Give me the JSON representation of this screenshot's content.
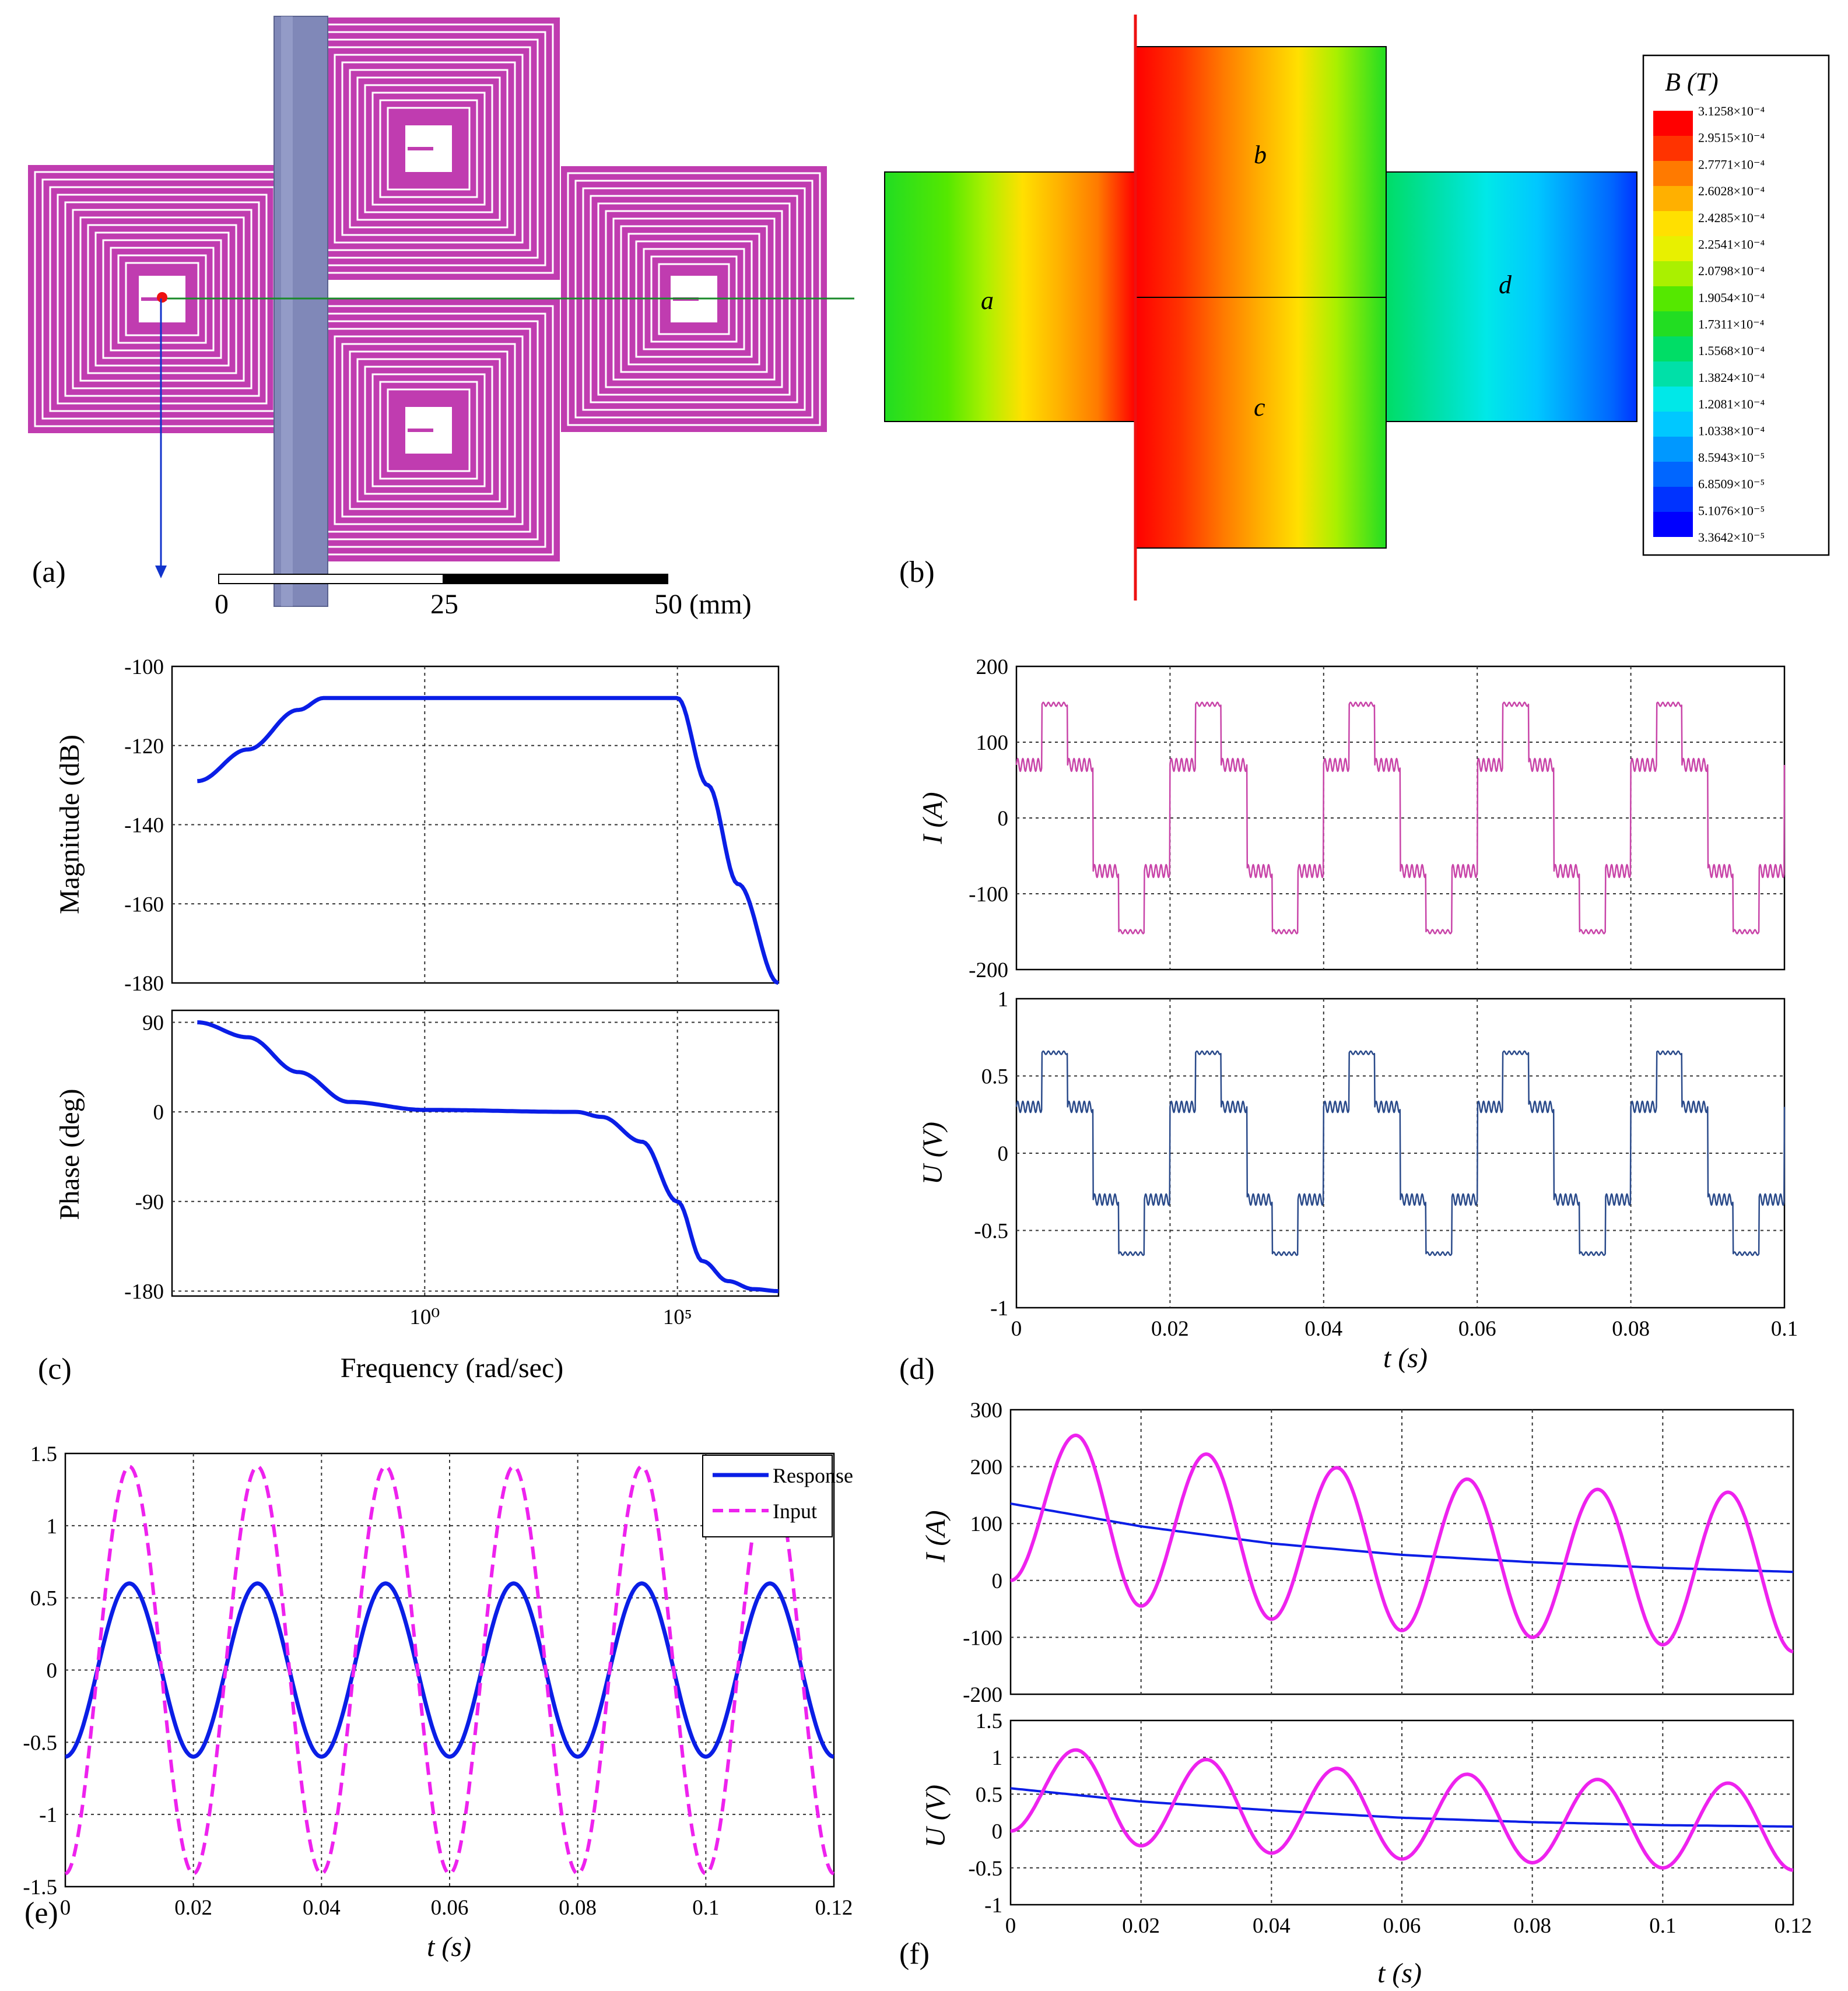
{
  "panel_labels": [
    "(a)",
    "(b)",
    "(c)",
    "(d)",
    "(e)",
    "(f)"
  ],
  "colors": {
    "coil": "#c03cb0",
    "rod": "#8088b8",
    "blue_curve": "#0a1ee6",
    "magenta_curve": "#ee22ee",
    "current_d": "#c844a8",
    "voltage_d": "#2a4a8a",
    "red_line": "#e11",
    "green_line": "#1a8a2a"
  },
  "panel_a": {
    "scale_labels": [
      "0",
      "25",
      "50 (mm)"
    ]
  },
  "panel_b": {
    "region_labels": [
      "a",
      "b",
      "c",
      "d"
    ],
    "colorbar_title": "B (T)",
    "colorbar_ticks": [
      "3.1258×10⁻⁴",
      "2.9515×10⁻⁴",
      "2.7771×10⁻⁴",
      "2.6028×10⁻⁴",
      "2.4285×10⁻⁴",
      "2.2541×10⁻⁴",
      "2.0798×10⁻⁴",
      "1.9054×10⁻⁴",
      "1.7311×10⁻⁴",
      "1.5568×10⁻⁴",
      "1.3824×10⁻⁴",
      "1.2081×10⁻⁴",
      "1.0338×10⁻⁴",
      "8.5943×10⁻⁵",
      "6.8509×10⁻⁵",
      "5.1076×10⁻⁵",
      "3.3642×10⁻⁵"
    ],
    "colorbar_colors": [
      "#ff0000",
      "#ff3300",
      "#ff7a00",
      "#ffb000",
      "#ffe000",
      "#e8f000",
      "#aaf000",
      "#55e800",
      "#22dd22",
      "#00dd66",
      "#00e0a8",
      "#00e8e8",
      "#00c8ff",
      "#0098ff",
      "#0066ff",
      "#0033ff",
      "#0000ff"
    ]
  },
  "chart_data": [
    {
      "id": "c_mag",
      "type": "line",
      "ylabel": "Magnitude (dB)",
      "ylim": [
        -180,
        -100
      ],
      "yticks": [
        "-100",
        "-120",
        "-140",
        "-160",
        "-180"
      ],
      "x_log10": [
        -4.5,
        -3.5,
        -2.5,
        -2,
        0,
        4,
        4.3,
        4.6,
        5,
        5.6,
        6.2,
        7
      ],
      "values": [
        -129,
        -121,
        -111,
        -108,
        -108,
        -108,
        -108,
        -108,
        -108,
        -130,
        -155,
        -180
      ]
    },
    {
      "id": "c_phase",
      "type": "line",
      "xlabel": "Frequency (rad/sec)",
      "ylabel": "Phase (deg)",
      "ylim": [
        -180,
        90
      ],
      "yticks": [
        "90",
        "0",
        "-90",
        "-180"
      ],
      "xticks": [
        "10⁰",
        "10⁵"
      ],
      "x_log10": [
        -4.5,
        -3.5,
        -2.5,
        -1.5,
        0,
        3,
        3.5,
        4.3,
        5,
        5.5,
        6,
        6.5,
        7
      ],
      "values": [
        90,
        75,
        40,
        10,
        2,
        0,
        -5,
        -30,
        -90,
        -150,
        -170,
        -178,
        -180
      ]
    },
    {
      "id": "d_current",
      "type": "line",
      "ylabel": "I (A)",
      "ylim": [
        -200,
        200
      ],
      "yticks": [
        "200",
        "100",
        "0",
        "-100",
        "-200"
      ],
      "period": 0.02,
      "series": [
        {
          "levels": [
            70,
            150,
            70,
            -70,
            -150,
            -70
          ]
        }
      ]
    },
    {
      "id": "d_voltage",
      "type": "line",
      "xlabel": "t (s)",
      "ylabel": "U (V)",
      "ylim": [
        -1,
        1
      ],
      "yticks": [
        "1",
        "0.5",
        "0",
        "-0.5",
        "-1"
      ],
      "xticks": [
        "0",
        "0.02",
        "0.04",
        "0.06",
        "0.08",
        "0.1"
      ],
      "period": 0.02,
      "series": [
        {
          "levels": [
            0.3,
            0.65,
            0.3,
            -0.3,
            -0.65,
            -0.3
          ]
        }
      ]
    },
    {
      "id": "e",
      "type": "line",
      "xlabel": "t (s)",
      "ylim": [
        -1.5,
        1.5
      ],
      "yticks": [
        "1.5",
        "1",
        "0.5",
        "0",
        "-0.5",
        "-1",
        "-1.5"
      ],
      "xticks": [
        "0",
        "0.02",
        "0.04",
        "0.06",
        "0.08",
        "0.1",
        "0.12"
      ],
      "legend": "top-right",
      "series": [
        {
          "name": "Response",
          "amplitude": 0.6,
          "frequency_hz": 50
        },
        {
          "name": "Input",
          "amplitude": 1.41,
          "frequency_hz": 50
        }
      ]
    },
    {
      "id": "f_current",
      "type": "line",
      "ylabel": "I (A)",
      "ylim": [
        -200,
        300
      ],
      "yticks": [
        "300",
        "200",
        "100",
        "0",
        "-100",
        "-200"
      ],
      "series": [
        {
          "x": [
            0,
            0.02,
            0.04,
            0.06,
            0.08,
            0.1,
            0.12
          ],
          "values": [
            135,
            95,
            65,
            45,
            32,
            22,
            15
          ]
        },
        {
          "x": [
            0,
            0.01,
            0.02,
            0.03,
            0.04,
            0.05,
            0.06,
            0.07,
            0.08,
            0.09,
            0.1,
            0.11,
            0.12
          ],
          "values": [
            0,
            255,
            -45,
            222,
            -68,
            198,
            -88,
            178,
            -100,
            160,
            -113,
            155,
            -125
          ]
        }
      ]
    },
    {
      "id": "f_voltage",
      "type": "line",
      "xlabel": "t (s)",
      "ylabel": "U (V)",
      "ylim": [
        -1,
        1.5
      ],
      "yticks": [
        "1.5",
        "1",
        "0.5",
        "0",
        "-0.5",
        "-1"
      ],
      "xticks": [
        "0",
        "0.02",
        "0.04",
        "0.06",
        "0.08",
        "0.1",
        "0.12"
      ],
      "series": [
        {
          "x": [
            0,
            0.02,
            0.04,
            0.06,
            0.08,
            0.1,
            0.12
          ],
          "values": [
            0.58,
            0.4,
            0.28,
            0.18,
            0.12,
            0.08,
            0.06
          ]
        },
        {
          "x": [
            0,
            0.01,
            0.02,
            0.03,
            0.04,
            0.05,
            0.06,
            0.07,
            0.08,
            0.09,
            0.1,
            0.11,
            0.12
          ],
          "values": [
            0,
            1.1,
            -0.2,
            0.97,
            -0.3,
            0.85,
            -0.38,
            0.77,
            -0.43,
            0.7,
            -0.5,
            0.65,
            -0.53
          ]
        }
      ]
    }
  ]
}
